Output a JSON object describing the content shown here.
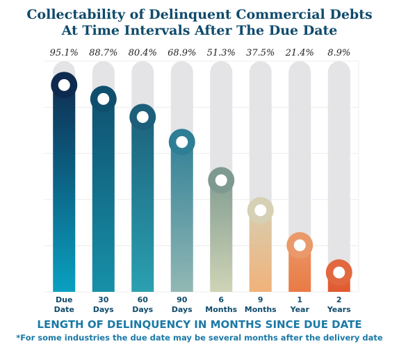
{
  "chart_data": {
    "type": "bar",
    "title_lines": [
      "Collectability of Delinquent Commercial Debts",
      "At Time Intervals After The Due Date"
    ],
    "categories": [
      [
        "Due",
        "Date"
      ],
      [
        "30",
        "Days"
      ],
      [
        "60",
        "Days"
      ],
      [
        "90",
        "Days"
      ],
      [
        "6",
        "Months"
      ],
      [
        "9",
        "Months"
      ],
      [
        "1",
        "Year"
      ],
      [
        "2",
        "Years"
      ]
    ],
    "values": [
      95.1,
      88.7,
      80.4,
      68.9,
      51.3,
      37.5,
      21.4,
      8.9
    ],
    "value_labels": [
      "95.1%",
      "88.7%",
      "80.4%",
      "68.9%",
      "51.3%",
      "37.5%",
      "21.4%",
      "8.9%"
    ],
    "xlabel": "LENGTH OF DELINQUENCY IN MONTHS SINCE DUE DATE",
    "ylabel": "",
    "ylim": [
      0,
      100
    ],
    "grid": true,
    "legend": "none",
    "colors": {
      "track": "#e4e4e6",
      "bar_top": [
        "#0e2a4e",
        "#0f4f6e",
        "#1d5f7a",
        "#2e7e96",
        "#7e9a90",
        "#d6d0b4",
        "#ea9a6a",
        "#e2683f"
      ],
      "bar_bottom": [
        "#0aa0c0",
        "#1790a8",
        "#2aa0b0",
        "#92b8b4",
        "#cfd4b6",
        "#f0b27a",
        "#e97a45",
        "#e05a30"
      ],
      "category_text": "#0f4a6b",
      "value_text": "#222222"
    }
  },
  "footnote": "*For some industries the due date may be several months after the delivery date"
}
